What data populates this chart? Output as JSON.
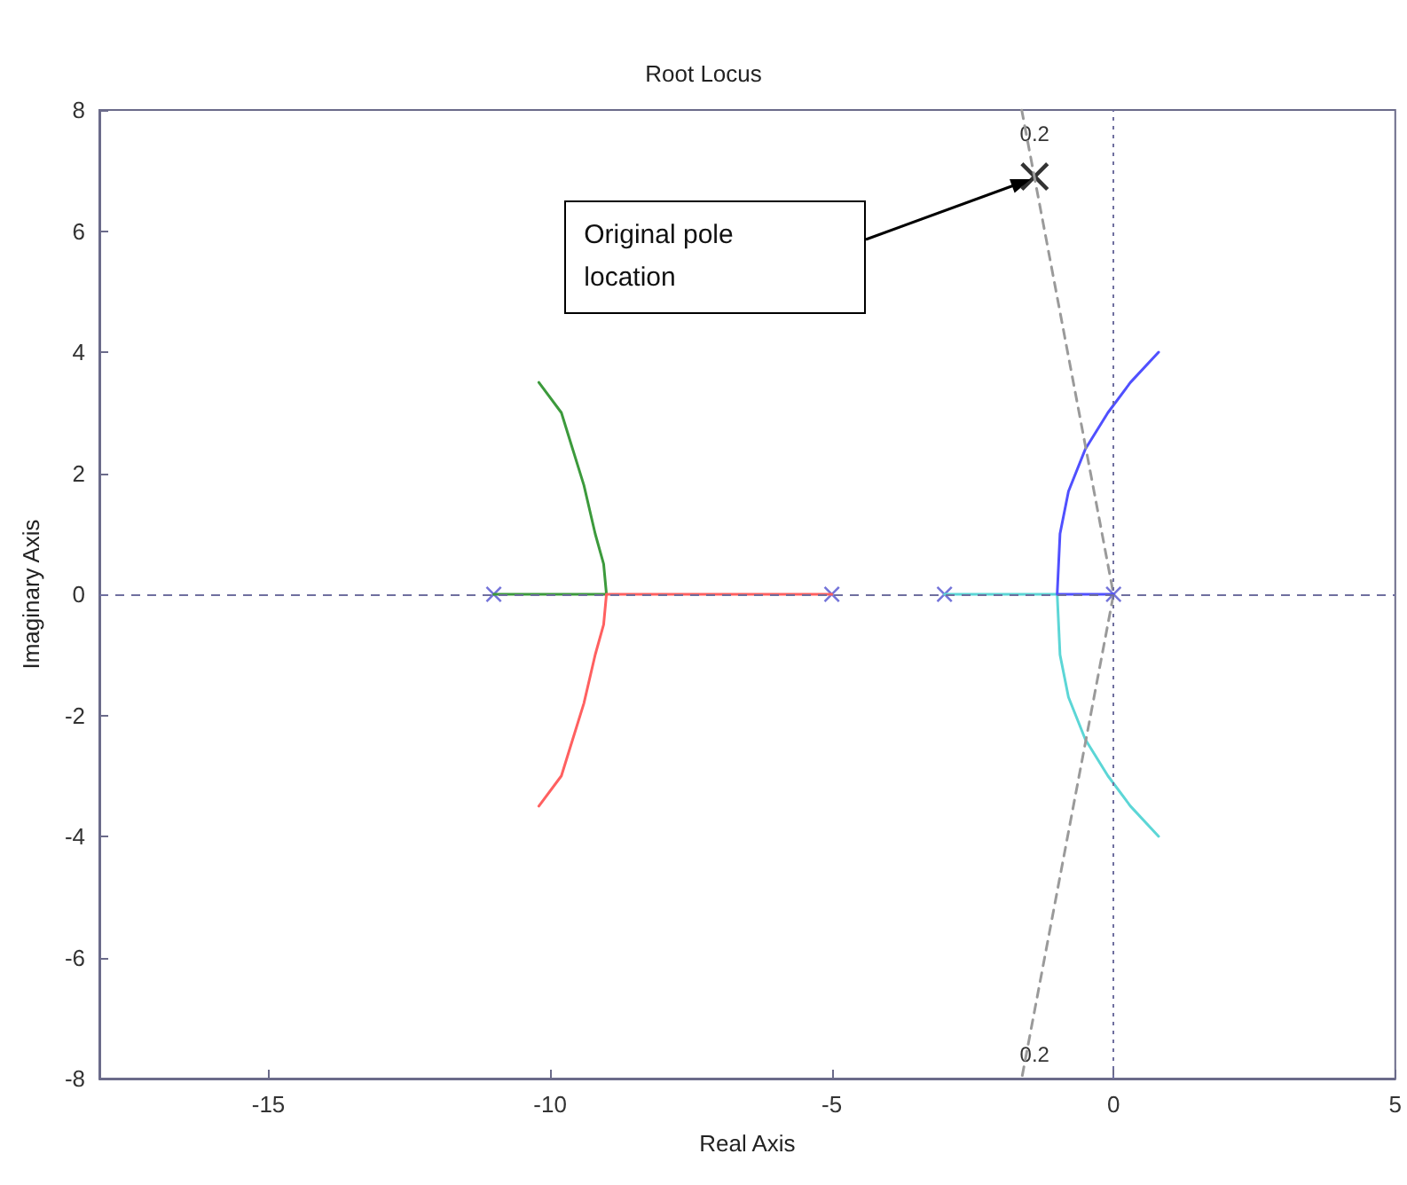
{
  "chart_data": {
    "type": "line",
    "title": "Root Locus",
    "xlabel": "Real Axis",
    "ylabel": "Imaginary Axis",
    "xlim": [
      -18,
      5
    ],
    "xticks": [
      -15,
      -10,
      -5,
      0,
      5
    ],
    "ylim": [
      -8,
      8
    ],
    "yticks": [
      -8,
      -6,
      -4,
      -2,
      0,
      2,
      4,
      6,
      8
    ],
    "line_style": "solid",
    "series": [
      {
        "color": "#3c9a3c",
        "x": [
          -11,
          -10,
          -9,
          -9.05,
          -9.2,
          -9.4,
          -9.6,
          -9.8,
          -10.2
        ],
        "values": [
          0,
          0,
          0,
          0.5,
          1,
          1.8,
          2.4,
          3,
          3.5
        ]
      },
      {
        "color": "#ff6060",
        "x": [
          -5,
          -7,
          -9,
          -9.05,
          -9.2,
          -9.4,
          -9.6,
          -9.8,
          -10.2
        ],
        "values": [
          0,
          0,
          0,
          -0.5,
          -1,
          -1.8,
          -2.4,
          -3,
          -3.5
        ]
      },
      {
        "color": "#5cd6d6",
        "x": [
          -3,
          -2,
          -1,
          -0.95,
          -0.8,
          -0.5,
          -0.1,
          0.3,
          0.8
        ],
        "values": [
          0,
          0,
          0,
          -1,
          -1.7,
          -2.4,
          -3,
          -3.5,
          -4
        ]
      },
      {
        "color": "#5050ff",
        "x": [
          0,
          -0.5,
          -1,
          -0.95,
          -0.8,
          -0.5,
          -0.1,
          0.3,
          0.8
        ],
        "values": [
          0,
          0,
          0,
          1,
          1.7,
          2.4,
          3,
          3.5,
          4
        ]
      },
      {
        "color": "#9a9a9a",
        "line_style": "dashed",
        "x": [
          -1.63,
          0,
          -1.63
        ],
        "values": [
          8,
          0,
          -8
        ]
      },
      {
        "type": "scatter",
        "color": "#5050d0",
        "marker": "cross",
        "x": [
          -11,
          -5,
          -3,
          0
        ],
        "values": [
          0,
          0,
          0,
          0
        ]
      },
      {
        "type": "scatter",
        "color": "#000000",
        "marker": "cross",
        "x": [
          -1.4
        ],
        "values": [
          6.9
        ]
      }
    ],
    "ref_lines": [
      {
        "axis": "y",
        "value": 0,
        "color": "#6f6f9f",
        "line_style": "dashed"
      },
      {
        "axis": "x",
        "value": 0,
        "color": "#6f6f9f",
        "line_style": "dotted"
      }
    ],
    "annotations": [
      "Original pole location",
      {
        "text": "0.2",
        "x": -1.4,
        "y": 7.6
      },
      {
        "text": "0.2",
        "x": -1.4,
        "y": -7.6
      }
    ]
  }
}
